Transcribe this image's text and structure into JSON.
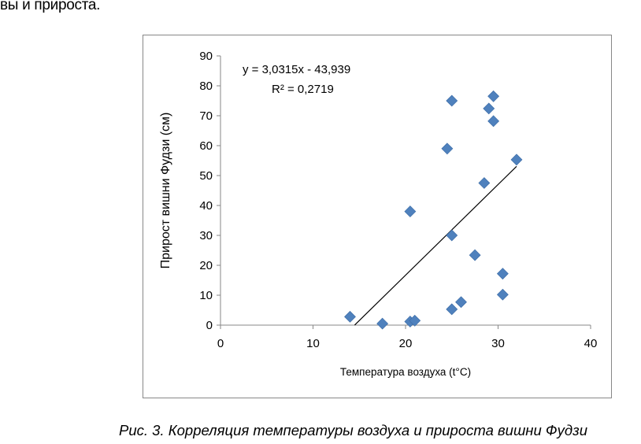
{
  "page": {
    "top_text": "вы и прироста.",
    "caption": "Рис. 3. Корреляция температуры воздуха и прироста вишни Фудзи"
  },
  "chart_data": {
    "type": "scatter",
    "xlabel": "Температура воздуха (t°C)",
    "ylabel": "Прирост вишни Фудзи (см)",
    "xlim": [
      0,
      40
    ],
    "ylim": [
      0,
      90
    ],
    "xticks": [
      0,
      10,
      20,
      30,
      40
    ],
    "yticks": [
      0,
      10,
      20,
      30,
      40,
      50,
      60,
      70,
      80,
      90
    ],
    "grid": false,
    "marker_color": "#4F81BD",
    "trendline": {
      "equation": "y = 3,0315x - 43,939",
      "r2": "R² = 0,2719",
      "slope": 3.0315,
      "intercept": -43.939,
      "x_range": [
        14.5,
        32
      ]
    },
    "points": [
      {
        "x": 14,
        "y": 2.8
      },
      {
        "x": 17.5,
        "y": 0.5
      },
      {
        "x": 20.5,
        "y": 1.2
      },
      {
        "x": 21,
        "y": 1.5
      },
      {
        "x": 20.5,
        "y": 38
      },
      {
        "x": 24.5,
        "y": 59
      },
      {
        "x": 25,
        "y": 75
      },
      {
        "x": 25,
        "y": 30
      },
      {
        "x": 25,
        "y": 5.3
      },
      {
        "x": 26,
        "y": 7.7
      },
      {
        "x": 27.5,
        "y": 23.4
      },
      {
        "x": 28.5,
        "y": 47.5
      },
      {
        "x": 29,
        "y": 72.4
      },
      {
        "x": 29.5,
        "y": 76.5
      },
      {
        "x": 29.5,
        "y": 68.2
      },
      {
        "x": 30.5,
        "y": 17.2
      },
      {
        "x": 30.5,
        "y": 10.2
      },
      {
        "x": 32,
        "y": 55.3
      }
    ]
  }
}
